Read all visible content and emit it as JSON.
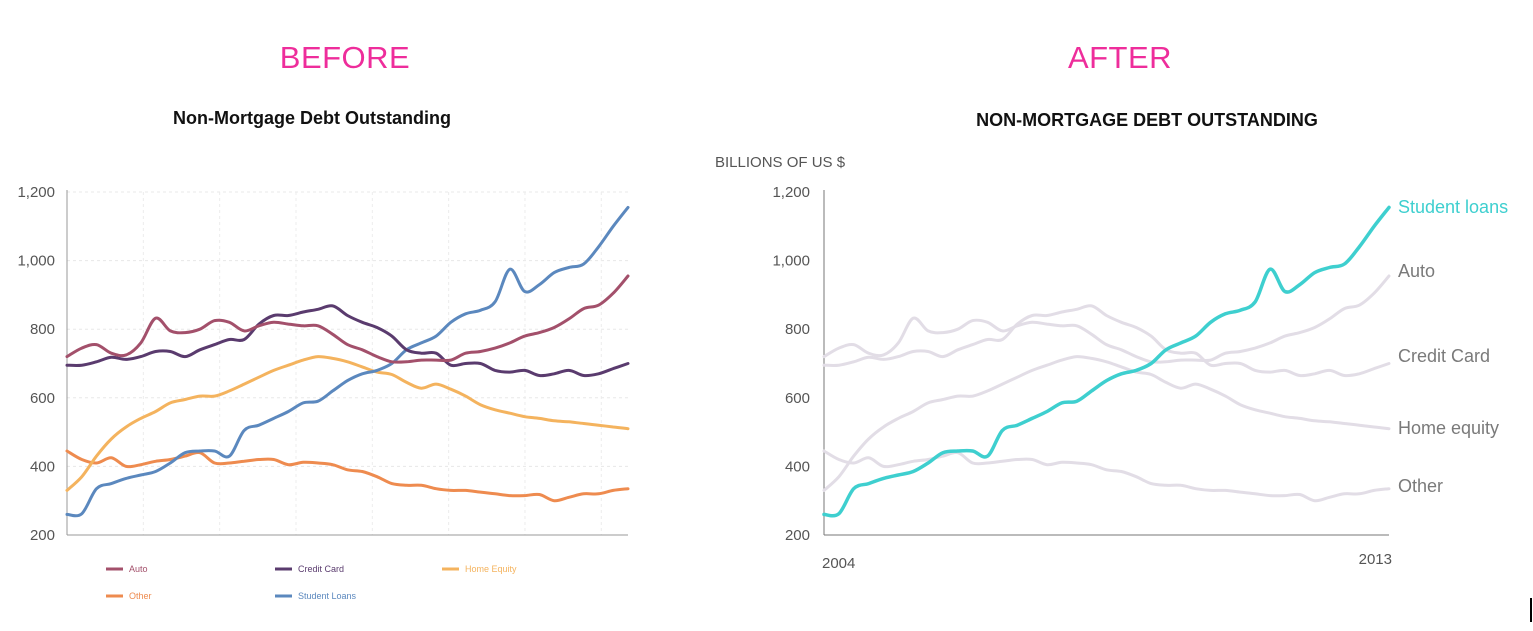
{
  "panels": {
    "before_label": "BEFORE",
    "after_label": "AFTER"
  },
  "colors": {
    "panel_label": "#ee2d9b",
    "auto": "#a3506b",
    "credit_card": "#5a3b6e",
    "home_equity": "#f4b35e",
    "other": "#ee8b4f",
    "student_loans": "#5b88be",
    "highlight": "#3ecfcf",
    "muted": "#e2dde6"
  },
  "chart_data": [
    {
      "type": "line",
      "title": "Non-Mortgage Debt Outstanding",
      "xlabel": "",
      "ylabel": "",
      "ylim": [
        200,
        1200
      ],
      "yticks": [
        200,
        400,
        600,
        800,
        1000,
        1200
      ],
      "ytick_labels": [
        "200",
        "400",
        "600",
        "800",
        "1,000",
        "1,200"
      ],
      "xlim": [
        2003.75,
        2013.25
      ],
      "x": [
        2003.75,
        2004.0,
        2004.25,
        2004.5,
        2004.75,
        2005.0,
        2005.25,
        2005.5,
        2005.75,
        2006.0,
        2006.25,
        2006.5,
        2006.75,
        2007.0,
        2007.25,
        2007.5,
        2007.75,
        2008.0,
        2008.25,
        2008.5,
        2008.75,
        2009.0,
        2009.25,
        2009.5,
        2009.75,
        2010.0,
        2010.25,
        2010.5,
        2010.75,
        2011.0,
        2011.25,
        2011.5,
        2011.75,
        2012.0,
        2012.25,
        2012.5,
        2012.75,
        2013.0,
        2013.25
      ],
      "grid": true,
      "legend_position": "bottom",
      "series": [
        {
          "name": "Auto",
          "key": "auto",
          "values": [
            720,
            745,
            755,
            730,
            725,
            760,
            832,
            795,
            790,
            800,
            825,
            820,
            795,
            810,
            820,
            815,
            810,
            810,
            785,
            755,
            740,
            720,
            705,
            705,
            710,
            710,
            710,
            730,
            735,
            745,
            760,
            780,
            790,
            805,
            830,
            860,
            870,
            905,
            955
          ]
        },
        {
          "name": "Credit Card",
          "key": "credit_card",
          "values": [
            695,
            695,
            705,
            718,
            712,
            720,
            735,
            735,
            720,
            740,
            755,
            770,
            770,
            815,
            840,
            840,
            850,
            858,
            868,
            840,
            820,
            805,
            780,
            740,
            730,
            730,
            695,
            700,
            700,
            680,
            675,
            680,
            665,
            670,
            680,
            665,
            670,
            685,
            700
          ]
        },
        {
          "name": "Home Equity",
          "key": "home_equity",
          "values": [
            330,
            370,
            430,
            480,
            515,
            540,
            560,
            585,
            595,
            605,
            605,
            620,
            640,
            660,
            680,
            695,
            710,
            720,
            715,
            705,
            690,
            675,
            668,
            645,
            628,
            640,
            625,
            605,
            580,
            565,
            555,
            545,
            540,
            533,
            530,
            525,
            520,
            515,
            510
          ]
        },
        {
          "name": "Other",
          "key": "other",
          "values": [
            445,
            420,
            410,
            425,
            400,
            405,
            415,
            420,
            430,
            440,
            410,
            410,
            415,
            420,
            420,
            405,
            412,
            410,
            405,
            390,
            385,
            370,
            350,
            345,
            345,
            335,
            330,
            330,
            325,
            320,
            315,
            315,
            318,
            300,
            310,
            320,
            320,
            330,
            335
          ]
        },
        {
          "name": "Student Loans",
          "key": "student_loans",
          "values": [
            260,
            262,
            335,
            350,
            365,
            375,
            385,
            410,
            440,
            445,
            445,
            430,
            505,
            520,
            540,
            560,
            585,
            590,
            620,
            650,
            670,
            680,
            700,
            740,
            760,
            780,
            820,
            845,
            855,
            880,
            975,
            910,
            930,
            965,
            980,
            990,
            1040,
            1100,
            1155
          ]
        }
      ]
    },
    {
      "type": "line",
      "title": "NON-MORTGAGE DEBT OUTSTANDING",
      "ylabel": "BILLIONS OF US $",
      "ylim": [
        200,
        1200
      ],
      "yticks": [
        200,
        400,
        600,
        800,
        1000,
        1200
      ],
      "ytick_labels": [
        "200",
        "400",
        "600",
        "800",
        "1,000",
        "1,200"
      ],
      "xlim": [
        2003.75,
        2013.25
      ],
      "xtick_labels": [
        "2004",
        "2013"
      ],
      "highlighted_series": "Student loans",
      "grid": false,
      "legend_position": "direct labels at line ends",
      "end_labels": [
        "Student loans",
        "Auto",
        "Credit Card",
        "Home equity",
        "Other"
      ]
    }
  ]
}
